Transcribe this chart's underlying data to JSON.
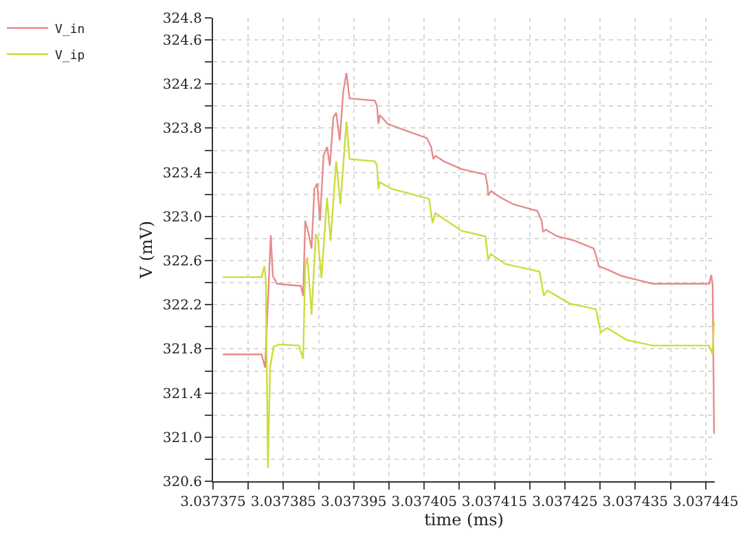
{
  "chart_data": {
    "type": "line",
    "xlabel": "time (ms)",
    "ylabel": "V (mV)",
    "legend": "top left",
    "grid": true,
    "line_style": "solid",
    "marker": "none",
    "xlim": [
      3.037375,
      3.0374463
    ],
    "xticks": [
      3.037375,
      {
        "value": 3.03738,
        "label": null
      },
      3.037385,
      {
        "value": 3.03739,
        "label": null
      },
      3.037395,
      {
        "value": 3.0374,
        "label": null
      },
      3.037405,
      {
        "value": 3.03741,
        "label": null
      },
      3.037415,
      {
        "value": 3.03742,
        "label": null
      },
      3.037425,
      {
        "value": 3.03743,
        "label": null
      },
      3.037435,
      {
        "value": 3.03744,
        "label": null
      },
      3.037445
    ],
    "ylim": [
      320.6,
      324.8
    ],
    "yticks": [
      320.6,
      {
        "value": 320.8,
        "label": null
      },
      {
        "value": 321.0,
        "label": "321.0"
      },
      {
        "value": 321.2,
        "label": null
      },
      321.4,
      {
        "value": 321.6,
        "label": null
      },
      321.8,
      {
        "value": 322.0,
        "label": null
      },
      322.2,
      {
        "value": 322.4,
        "label": null
      },
      322.6,
      {
        "value": 322.8,
        "label": null
      },
      {
        "value": 323.0,
        "label": "323.0"
      },
      {
        "value": 323.2,
        "label": null
      },
      323.4,
      {
        "value": 323.6,
        "label": null
      },
      323.8,
      {
        "value": 324.0,
        "label": null
      },
      324.2,
      {
        "value": 324.4,
        "label": null
      },
      324.6,
      324.8
    ],
    "series": [
      {
        "name": "V_in",
        "color": "#e88a8a",
        "x": [
          3.0373764,
          3.0373819,
          3.0373824,
          3.0373832,
          3.0373835,
          3.0373841,
          3.0373875,
          3.0373878,
          3.0373881,
          3.0373886,
          3.037389,
          3.0373894,
          3.0373898,
          3.0373902,
          3.0373907,
          3.0373912,
          3.0373916,
          3.0373921,
          3.0373925,
          3.037393,
          3.0373935,
          3.03739395,
          3.0373944,
          3.037398,
          3.0373983,
          3.0373985,
          3.0373987,
          3.0373998,
          3.0374023,
          3.0374054,
          3.037406,
          3.0374063,
          3.0374066,
          3.0374078,
          3.0374103,
          3.0374137,
          3.037414,
          3.0374141,
          3.0374145,
          3.0374159,
          3.0374177,
          3.0374211,
          3.0374217,
          3.0374219,
          3.0374223,
          3.0374239,
          3.0374264,
          3.0374291,
          3.0374296,
          3.0374298,
          3.037431,
          3.0374331,
          3.037435,
          3.0374375,
          3.0374455,
          3.0374458,
          3.037446,
          3.0374462
        ],
        "values": [
          321.75,
          321.75,
          321.63,
          322.83,
          322.46,
          322.39,
          322.37,
          322.28,
          322.96,
          322.84,
          322.71,
          323.25,
          323.3,
          322.96,
          323.55,
          323.63,
          323.46,
          323.9,
          323.94,
          323.69,
          324.13,
          324.3,
          324.07,
          324.05,
          324.0,
          323.84,
          323.92,
          323.84,
          323.78,
          323.71,
          323.63,
          323.52,
          323.55,
          323.5,
          323.43,
          323.38,
          323.28,
          323.19,
          323.23,
          323.17,
          323.11,
          323.05,
          322.96,
          322.86,
          322.88,
          322.82,
          322.78,
          322.71,
          322.61,
          322.55,
          322.52,
          322.46,
          322.43,
          322.39,
          322.39,
          322.47,
          322.38,
          321.03
        ]
      },
      {
        "name": "V_ip",
        "color": "#cddc3a",
        "x": [
          3.0373764,
          3.0373819,
          3.0373823,
          3.0373825,
          3.0373828,
          3.0373831,
          3.0373836,
          3.0373844,
          3.0373872,
          3.0373878,
          3.0373881,
          3.0373884,
          3.037389,
          3.0373896,
          3.0373899,
          3.0373904,
          3.0373912,
          3.0373917,
          3.0373925,
          3.0373931,
          3.03739395,
          3.0373944,
          3.037398,
          3.0373983,
          3.0373985,
          3.0373987,
          3.0374004,
          3.0374057,
          3.0374062,
          3.0374066,
          3.0374103,
          3.0374137,
          3.0374141,
          3.0374145,
          3.0374165,
          3.0374214,
          3.037422,
          3.0374225,
          3.0374257,
          3.0374294,
          3.0374301,
          3.037431,
          3.0374338,
          3.0374375,
          3.0374455,
          3.037446,
          3.0374462
        ],
        "values": [
          322.45,
          322.45,
          322.55,
          322.42,
          320.72,
          321.63,
          321.82,
          321.84,
          321.83,
          321.71,
          322.55,
          322.63,
          322.11,
          322.84,
          322.8,
          322.44,
          323.17,
          322.78,
          323.5,
          323.11,
          323.86,
          323.52,
          323.5,
          323.46,
          323.25,
          323.31,
          323.25,
          323.16,
          322.94,
          323.03,
          322.87,
          322.82,
          322.61,
          322.66,
          322.57,
          322.5,
          322.28,
          322.33,
          322.21,
          322.16,
          321.95,
          321.99,
          321.88,
          321.83,
          321.83,
          321.75,
          322.05
        ]
      }
    ]
  }
}
